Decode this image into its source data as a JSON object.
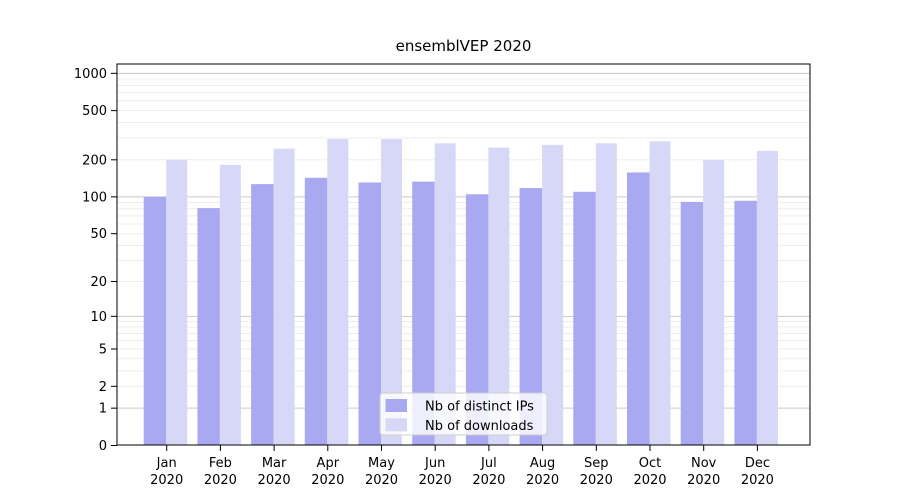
{
  "figure_title": "ensemblVEP 2020",
  "colors": {
    "background": "#ffffff",
    "dark_bar": "#a9a9f2",
    "light_bar": "#d7d7f8",
    "major_grid": "#c9c9c9",
    "minor_grid": "#ededed",
    "axis": "#000000",
    "legend_border": "#cccccc",
    "legend_fill": "rgba(255,255,255,0.8)"
  },
  "chart_data": {
    "type": "bar",
    "scale": "symlog (log1p)",
    "title": "ensemblVEP 2020",
    "xlabel": "",
    "ylabel": "",
    "categories": [
      "Jan 2020",
      "Feb 2020",
      "Mar 2020",
      "Apr 2020",
      "May 2020",
      "Jun 2020",
      "Jul 2020",
      "Aug 2020",
      "Sep 2020",
      "Oct 2020",
      "Nov 2020",
      "Dec 2020"
    ],
    "series": [
      {
        "name": "Nb of distinct IPs",
        "color": "#a9a9f2",
        "values": [
          100,
          81,
          127,
          143,
          131,
          133,
          105,
          118,
          110,
          158,
          91,
          93
        ]
      },
      {
        "name": "Nb of downloads",
        "color": "#d7d7f8",
        "values": [
          200,
          182,
          246,
          295,
          294,
          272,
          251,
          264,
          272,
          282,
          199,
          236
        ]
      }
    ],
    "yticks": [
      0,
      1,
      2,
      5,
      10,
      20,
      50,
      100,
      200,
      500,
      1000
    ],
    "major_grid_values": [
      1,
      10,
      100,
      1000
    ],
    "ylim": [
      0,
      1190
    ],
    "grid": "on",
    "legend_position": "lower center inside"
  }
}
